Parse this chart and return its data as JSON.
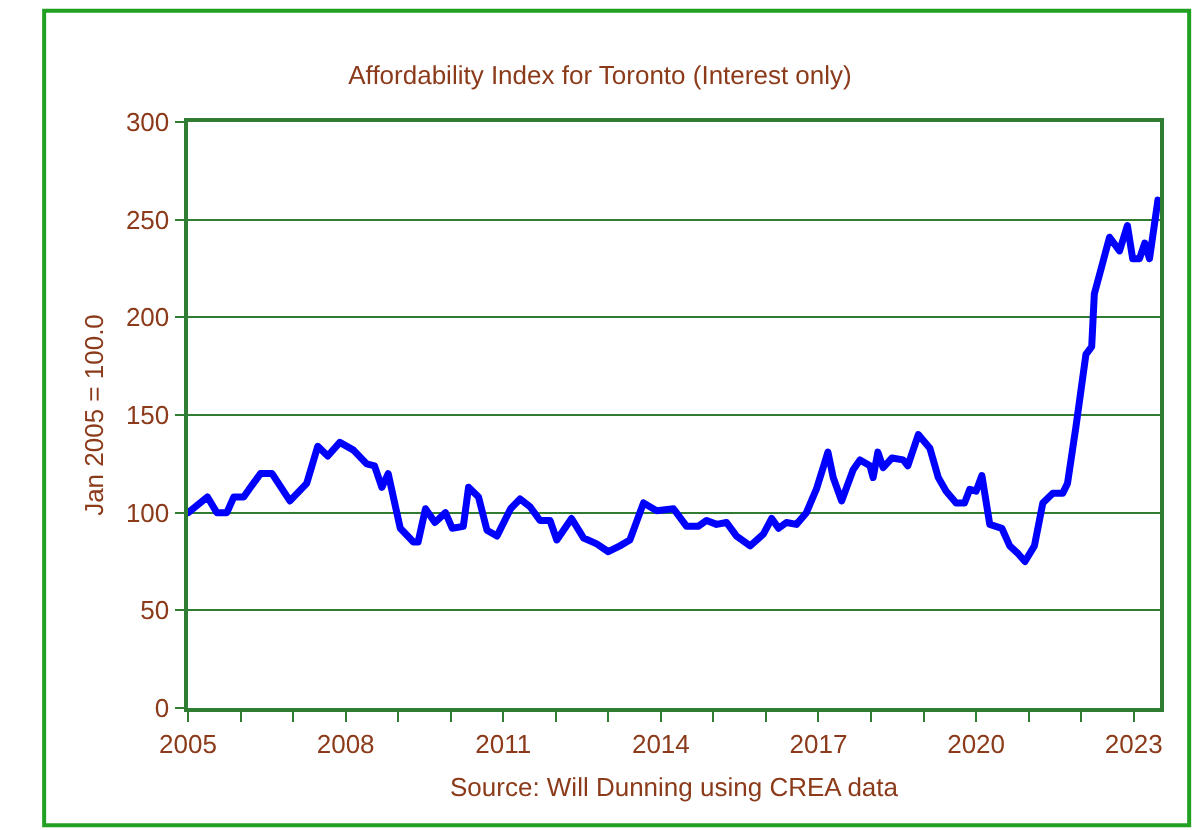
{
  "chart_data": {
    "type": "line",
    "title": "Affordability Index for Toronto (Interest only)",
    "ylabel": "Jan 2005 = 100.0",
    "annotations": [
      "Source: Will Dunning using CREA data"
    ],
    "x": [
      2005.0,
      2005.37,
      2005.55,
      2005.74,
      2005.87,
      2006.06,
      2006.19,
      2006.38,
      2006.6,
      2006.94,
      2007.26,
      2007.47,
      2007.66,
      2007.89,
      2008.15,
      2008.4,
      2008.55,
      2008.69,
      2008.81,
      2009.04,
      2009.29,
      2009.38,
      2009.52,
      2009.7,
      2009.9,
      2010.03,
      2010.24,
      2010.34,
      2010.53,
      2010.69,
      2010.88,
      2011.14,
      2011.32,
      2011.51,
      2011.7,
      2011.89,
      2012.02,
      2012.3,
      2012.53,
      2012.78,
      2013.0,
      2013.22,
      2013.41,
      2013.67,
      2013.92,
      2014.24,
      2014.49,
      2014.71,
      2014.87,
      2015.06,
      2015.25,
      2015.44,
      2015.7,
      2015.95,
      2016.11,
      2016.24,
      2016.39,
      2016.58,
      2016.77,
      2016.96,
      2017.18,
      2017.28,
      2017.44,
      2017.66,
      2017.79,
      2017.98,
      2018.04,
      2018.13,
      2018.23,
      2018.4,
      2018.61,
      2018.7,
      2018.9,
      2019.12,
      2019.28,
      2019.43,
      2019.62,
      2019.78,
      2019.88,
      2020.0,
      2020.11,
      2020.26,
      2020.49,
      2020.64,
      2020.8,
      2020.93,
      2021.11,
      2021.27,
      2021.46,
      2021.65,
      2021.74,
      2021.9,
      2022.09,
      2022.2,
      2022.25,
      2022.39,
      2022.54,
      2022.73,
      2022.88,
      2022.98,
      2023.11,
      2023.21,
      2023.3,
      2023.46
    ],
    "series": [
      {
        "color": "#0000ff",
        "values": [
          100,
          108,
          100,
          100,
          108,
          108,
          113,
          120,
          120,
          106,
          115,
          134,
          129,
          136,
          132,
          125,
          124,
          113,
          120,
          92,
          85,
          85,
          102,
          95,
          100,
          92,
          93,
          113,
          108,
          91,
          88,
          102,
          107,
          103,
          96,
          96,
          86,
          97,
          87,
          84,
          80,
          83,
          86,
          105,
          101,
          102,
          93,
          93,
          96,
          94,
          95,
          88,
          83,
          89,
          97,
          92,
          95,
          94,
          100,
          112,
          131,
          118,
          106,
          122,
          127,
          124,
          118,
          131,
          123,
          128,
          127,
          124,
          140,
          133,
          118,
          111,
          105,
          105,
          112,
          111,
          119,
          94,
          92,
          83,
          79,
          75,
          83,
          105,
          110,
          110,
          115,
          144,
          181,
          185,
          212,
          226,
          241,
          234,
          247,
          230,
          230,
          238,
          230,
          260
        ]
      }
    ],
    "xlim": [
      2005,
      2023.5
    ],
    "xticks": [
      {
        "value": 2005,
        "label": "2005"
      },
      {
        "value": 2006,
        "label": null
      },
      {
        "value": 2007,
        "label": null
      },
      {
        "value": 2008,
        "label": "2008"
      },
      {
        "value": 2009,
        "label": null
      },
      {
        "value": 2010,
        "label": null
      },
      {
        "value": 2011,
        "label": "2011"
      },
      {
        "value": 2012,
        "label": null
      },
      {
        "value": 2013,
        "label": null
      },
      {
        "value": 2014,
        "label": "2014"
      },
      {
        "value": 2015,
        "label": null
      },
      {
        "value": 2016,
        "label": null
      },
      {
        "value": 2017,
        "label": "2017"
      },
      {
        "value": 2018,
        "label": null
      },
      {
        "value": 2019,
        "label": null
      },
      {
        "value": 2020,
        "label": "2020"
      },
      {
        "value": 2021,
        "label": null
      },
      {
        "value": 2022,
        "label": null
      },
      {
        "value": 2023,
        "label": "2023"
      }
    ],
    "ylim": [
      0,
      300
    ],
    "yticks": [
      0,
      50,
      100,
      150,
      200,
      250,
      300
    ],
    "grid": "y",
    "marker": "none",
    "line_style": "solid"
  }
}
